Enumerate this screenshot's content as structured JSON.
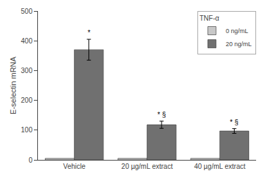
{
  "chart_data": {
    "type": "bar",
    "categories": [
      "Vehicle",
      "20 µg/mL extract",
      "40 µg/mL extract"
    ],
    "series": [
      {
        "name": "0 ng/mL",
        "color": "#c8c8c8",
        "values": [
          5,
          5,
          5
        ]
      },
      {
        "name": "20 ng/mL",
        "color": "#707070",
        "values": [
          370,
          118,
          97
        ],
        "errors": [
          35,
          12,
          8
        ]
      }
    ],
    "ylabel": "E-selectin mRNA",
    "ylim": [
      0,
      500
    ],
    "yticks": [
      0,
      100,
      200,
      300,
      400,
      500
    ],
    "legend": "upper right",
    "legend_title": "TNF-α",
    "grid": false,
    "annotations": [
      {
        "text": "*",
        "category": "Vehicle",
        "series": "20 ng/mL"
      },
      {
        "text": "* §",
        "category": "20 µg/mL extract",
        "series": "20 ng/mL"
      },
      {
        "text": "* §",
        "category": "40 µg/mL extract",
        "series": "20 ng/mL"
      }
    ]
  }
}
